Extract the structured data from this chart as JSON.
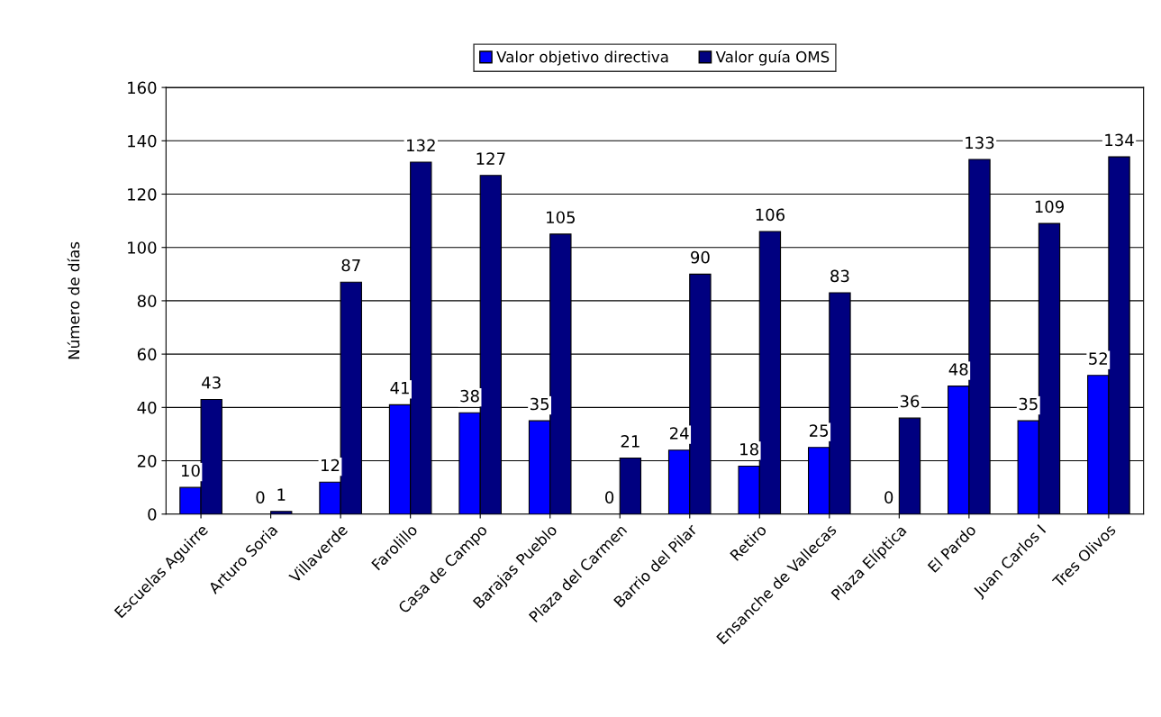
{
  "chart_data": {
    "type": "bar",
    "ylabel": "Número de días",
    "categories": [
      "Escuelas Aguirre",
      "Arturo Soria",
      "Villaverde",
      "Farolillo",
      "Casa de Campo",
      "Barajas Pueblo",
      "Plaza del Carmen",
      "Barrio del Pilar",
      "Retiro",
      "Ensanche de Vallecas",
      "Plaza Elíptica",
      "El Pardo",
      "Juan Carlos I",
      "Tres Olivos"
    ],
    "series": [
      {
        "name": "Valor objetivo directiva",
        "color": "#0000ff",
        "values": [
          10,
          0,
          12,
          41,
          38,
          35,
          0,
          24,
          18,
          25,
          0,
          48,
          35,
          52
        ]
      },
      {
        "name": "Valor guía OMS",
        "color": "#000080",
        "values": [
          43,
          1,
          87,
          132,
          127,
          105,
          21,
          90,
          106,
          83,
          36,
          133,
          109,
          134
        ]
      }
    ],
    "ylim": [
      0,
      160
    ],
    "yticks": [
      0,
      20,
      40,
      60,
      80,
      100,
      120,
      140,
      160
    ],
    "grid": "y",
    "legend": "top",
    "data_labels": true
  }
}
